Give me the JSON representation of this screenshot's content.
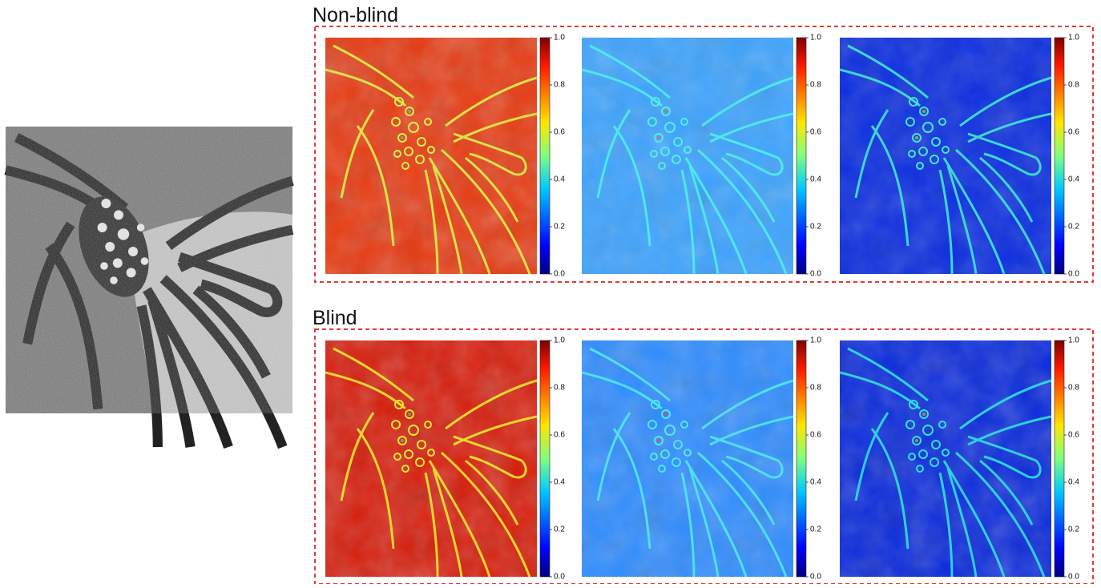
{
  "figure": {
    "sections": [
      {
        "title": "Non-blind"
      },
      {
        "title": "Blind"
      }
    ],
    "colorbar": {
      "range": [
        0,
        1
      ],
      "ticks": [
        {
          "value": 0,
          "label": "0.0"
        },
        0.2,
        0.4,
        0.6,
        0.8,
        {
          "value": 1,
          "label": "1.0"
        }
      ]
    }
  }
}
